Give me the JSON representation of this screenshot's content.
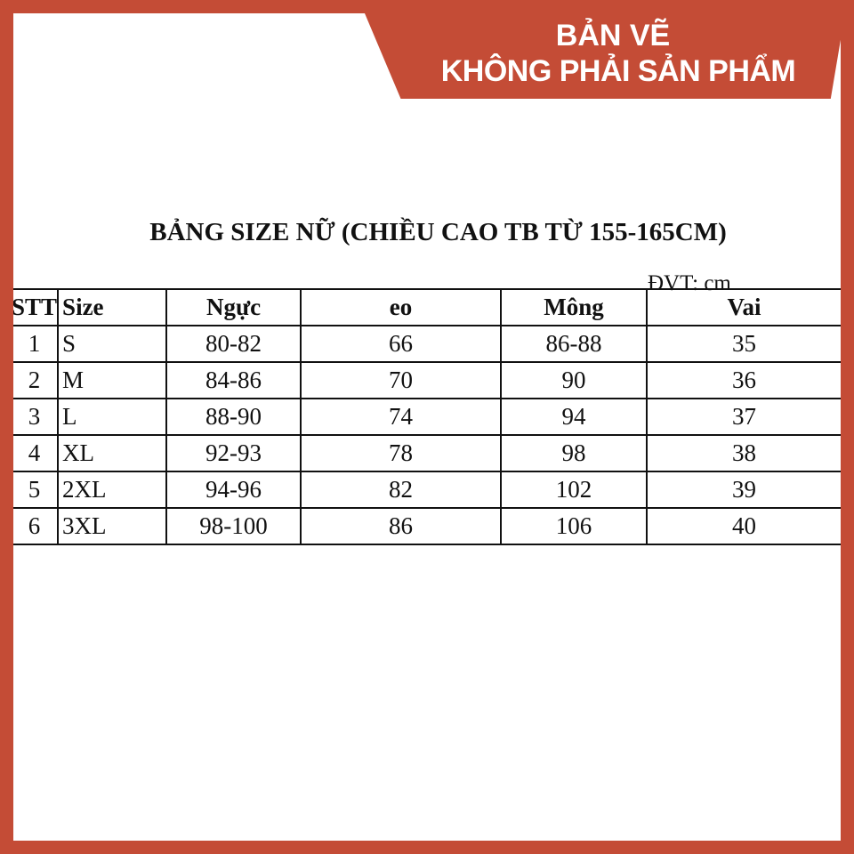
{
  "banner": {
    "line1": "BẢN VẼ",
    "line2": "KHÔNG PHẢI SẢN PHẨM",
    "color": "#c44c36"
  },
  "title": "BẢNG SIZE NỮ (CHIỀU CAO TB TỪ 155-165CM)",
  "unit": "ĐVT: cm",
  "table": {
    "headers": [
      "STT",
      "Size",
      "Ngực",
      "eo",
      "Mông",
      "Vai"
    ],
    "rows": [
      [
        "1",
        "S",
        "80-82",
        "66",
        "86-88",
        "35"
      ],
      [
        "2",
        "M",
        "84-86",
        "70",
        "90",
        "36"
      ],
      [
        "3",
        "L",
        "88-90",
        "74",
        "94",
        "37"
      ],
      [
        "4",
        "XL",
        "92-93",
        "78",
        "98",
        "38"
      ],
      [
        "5",
        "2XL",
        "94-96",
        "82",
        "102",
        "39"
      ],
      [
        "6",
        "3XL",
        "98-100",
        "86",
        "106",
        "40"
      ]
    ]
  }
}
